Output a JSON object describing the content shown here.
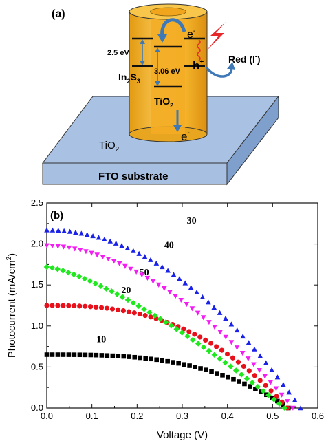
{
  "panel_a": {
    "label": "(a)",
    "energy_left": "2.5 eV",
    "energy_right": "3.06 eV",
    "layer_outer": "In",
    "layer_outer_sub": "2",
    "layer_outer_end": "S",
    "layer_outer_sub2": "3",
    "layer_inner": "TiO",
    "layer_inner_sub": "2",
    "film": "TiO",
    "film_sub": "2",
    "substrate": "FTO substrate",
    "electron_top": "e",
    "electron_top_sup": "-",
    "hole": "h",
    "hole_sup": "+",
    "electron_bottom": "e",
    "electron_bottom_sup": "-",
    "redox": "Red (I",
    "redox_sup": "-",
    "redox_end": ")",
    "colors": {
      "cylinder": "#f5b62c",
      "cylinder_dark": "#e49b15",
      "core": "#f0a51c",
      "substrate_top": "#a9c1e3",
      "substrate_front": "#7f9fcc",
      "arrow": "#3e78b7",
      "lightning": "#e8272a"
    }
  },
  "chart_data": {
    "type": "scatter",
    "panel_label": "(b)",
    "xlabel": "Voltage (V)",
    "ylabel": "Photocurrent (mA/cm",
    "ylabel_sup": "2",
    "ylabel_end": ")",
    "xlim": [
      0.0,
      0.6
    ],
    "ylim": [
      0.0,
      2.5
    ],
    "xticks": [
      "0.0",
      "0.1",
      "0.2",
      "0.3",
      "0.4",
      "0.5",
      "0.6"
    ],
    "yticks": [
      "0.0",
      "0.5",
      "1.0",
      "1.5",
      "2.0",
      "2.5"
    ],
    "grid": false,
    "series": [
      {
        "name": "10",
        "color": "#000000",
        "marker": "square",
        "jsc": 0.65,
        "voc": 0.535,
        "shape": 3.0,
        "label_pos": [
          0.11,
          0.8
        ]
      },
      {
        "name": "20",
        "color": "#e8101a",
        "marker": "circle",
        "jsc": 1.25,
        "voc": 0.533,
        "shape": 2.6,
        "label_pos": [
          0.165,
          1.4
        ]
      },
      {
        "name": "50",
        "color": "#1fe81f",
        "marker": "diamond",
        "jsc": 1.72,
        "voc": 0.527,
        "shape": 1.35,
        "label_pos": [
          0.205,
          1.62
        ]
      },
      {
        "name": "40",
        "color": "#f21ef2",
        "marker": "triangle-down",
        "jsc": 1.98,
        "voc": 0.545,
        "shape": 1.8,
        "label_pos": [
          0.26,
          1.95
        ]
      },
      {
        "name": "30",
        "color": "#1a22e8",
        "marker": "triangle-up",
        "jsc": 2.17,
        "voc": 0.562,
        "shape": 2.0,
        "label_pos": [
          0.31,
          2.25
        ]
      }
    ]
  }
}
